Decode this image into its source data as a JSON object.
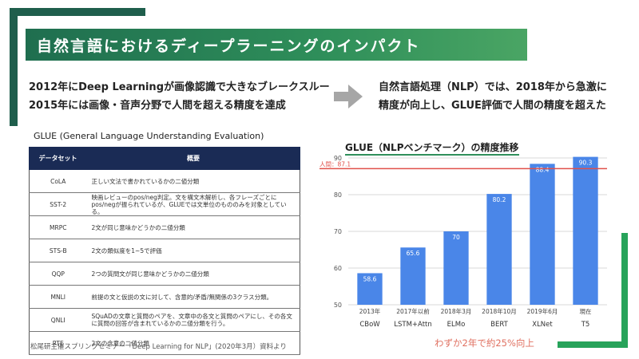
{
  "title": "自然言語におけるディープラーニングのインパクト",
  "intro": {
    "line1": "2012年にDeep Learningが画像認識で大きなブレークスルー",
    "line2": "2015年には画像・音声分野で人間を超える精度を達成"
  },
  "result": {
    "line1": "自然言語処理（NLP）では、2018年から急激に",
    "line2": "精度が向上し、GLUE評価で人間の精度を超えた"
  },
  "glue": {
    "caption": "GLUE (General Language Understanding Evaluation)",
    "headers": {
      "name": "データセット",
      "desc": "概要"
    },
    "rows": [
      {
        "name": "CoLA",
        "desc": "正しい文法で書かれているかの二値分類"
      },
      {
        "name": "SST-2",
        "desc": "映画レビューのpos/neg判定。文を構文木解析し、各フレーズごとにpos/negが振られているが、GLUEでは文単位のもののみを対象としている。"
      },
      {
        "name": "MRPC",
        "desc": "2文が同じ意味かどうかの二値分類"
      },
      {
        "name": "STS-B",
        "desc": "2文の類似度を1~5で評価"
      },
      {
        "name": "QQP",
        "desc": "2つの質問文が同じ意味かどうかの二値分類"
      },
      {
        "name": "MNLI",
        "desc": "前提の文と仮説の文に対して、含意的/矛盾/無関係の3クラス分類。"
      },
      {
        "name": "QNLI",
        "desc": "SQuADの文章と質問のペアを、文章中の各文と質問のペアにし、その各文に質問の回答が含まれているかの二値分類を行う。"
      },
      {
        "name": "RTE",
        "desc": "2文の含意の二値分類"
      }
    ]
  },
  "source": "松尾研主催スプリングセミナー「Deep Learning for NLP」(2020年3月）資料より",
  "footnote": "わずか2年で約25%向上",
  "colors": {
    "title_bar": "#2f8f5a",
    "bar": "#4a86e8",
    "human_line": "#e0504a",
    "table_header": "#1a2b55"
  },
  "icons": {
    "arrow": "right-arrow-icon"
  },
  "chart_data": {
    "type": "bar",
    "title": "GLUE（NLPベンチマーク）の精度推移",
    "categories": [
      "CBoW",
      "LSTM+Attn",
      "ELMo",
      "BERT",
      "XLNet",
      "T5"
    ],
    "dates": [
      "2013年",
      "2017年以前",
      "2018年3月",
      "2018年10月",
      "2019年6月",
      "現在"
    ],
    "values": [
      58.6,
      65.6,
      70,
      80.2,
      88.4,
      90.3
    ],
    "value_labels": [
      "58.6",
      "65.6",
      "70",
      "80.2",
      "88.4",
      "90.3"
    ],
    "ylim": [
      50,
      90
    ],
    "yticks": [
      50,
      60,
      70,
      80,
      90
    ],
    "grid": true,
    "reference_line": {
      "label": "人間：87.1",
      "value": 87.1
    }
  }
}
